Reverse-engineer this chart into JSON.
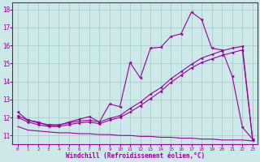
{
  "bg_color": "#cce8e8",
  "line_color": "#990099",
  "grid_color": "#aacccc",
  "xlim": [
    -0.5,
    23.5
  ],
  "ylim": [
    10.5,
    18.4
  ],
  "yticks": [
    11,
    12,
    13,
    14,
    15,
    16,
    17,
    18
  ],
  "xticks": [
    0,
    1,
    2,
    3,
    4,
    5,
    6,
    7,
    8,
    9,
    10,
    11,
    12,
    13,
    14,
    15,
    16,
    17,
    18,
    19,
    20,
    21,
    22,
    23
  ],
  "xlabel": "Windchill (Refroidissement éolien,°C)",
  "curve1_x": [
    0,
    1,
    2,
    3,
    4,
    5,
    6,
    7,
    8,
    9,
    10,
    11,
    12,
    13,
    14,
    15,
    16,
    17,
    18,
    19,
    20,
    21,
    22,
    23
  ],
  "curve1_y": [
    12.3,
    11.85,
    11.75,
    11.55,
    11.55,
    11.75,
    11.9,
    12.05,
    11.75,
    12.75,
    12.6,
    15.05,
    14.2,
    15.85,
    15.9,
    16.5,
    16.65,
    17.85,
    17.45,
    15.85,
    15.75,
    14.3,
    11.45,
    10.8
  ],
  "curve2_x": [
    0,
    1,
    2,
    3,
    4,
    5,
    6,
    7,
    8,
    9,
    10,
    11,
    12,
    13,
    14,
    15,
    16,
    17,
    18,
    19,
    20,
    21,
    22,
    23
  ],
  "curve2_y": [
    12.1,
    11.85,
    11.7,
    11.6,
    11.6,
    11.7,
    11.8,
    11.85,
    11.75,
    11.95,
    12.1,
    12.5,
    12.85,
    13.3,
    13.65,
    14.15,
    14.55,
    14.95,
    15.3,
    15.5,
    15.7,
    15.85,
    15.95,
    10.75
  ],
  "curve3_x": [
    0,
    1,
    2,
    3,
    4,
    5,
    6,
    7,
    8,
    9,
    10,
    11,
    12,
    13,
    14,
    15,
    16,
    17,
    18,
    19,
    20,
    21,
    22,
    23
  ],
  "curve3_y": [
    12.0,
    11.75,
    11.6,
    11.5,
    11.5,
    11.6,
    11.7,
    11.75,
    11.65,
    11.85,
    12.0,
    12.3,
    12.65,
    13.05,
    13.45,
    13.95,
    14.35,
    14.75,
    15.05,
    15.25,
    15.45,
    15.6,
    15.75,
    10.75
  ],
  "curve4_x": [
    0,
    1,
    2,
    3,
    4,
    5,
    6,
    7,
    8,
    9,
    10,
    11,
    12,
    13,
    14,
    15,
    16,
    17,
    18,
    19,
    20,
    21,
    22,
    23
  ],
  "curve4_y": [
    11.5,
    11.3,
    11.25,
    11.2,
    11.15,
    11.15,
    11.1,
    11.1,
    11.05,
    11.05,
    11.0,
    11.0,
    10.95,
    10.95,
    10.9,
    10.9,
    10.85,
    10.85,
    10.8,
    10.8,
    10.75,
    10.75,
    10.75,
    10.7
  ]
}
